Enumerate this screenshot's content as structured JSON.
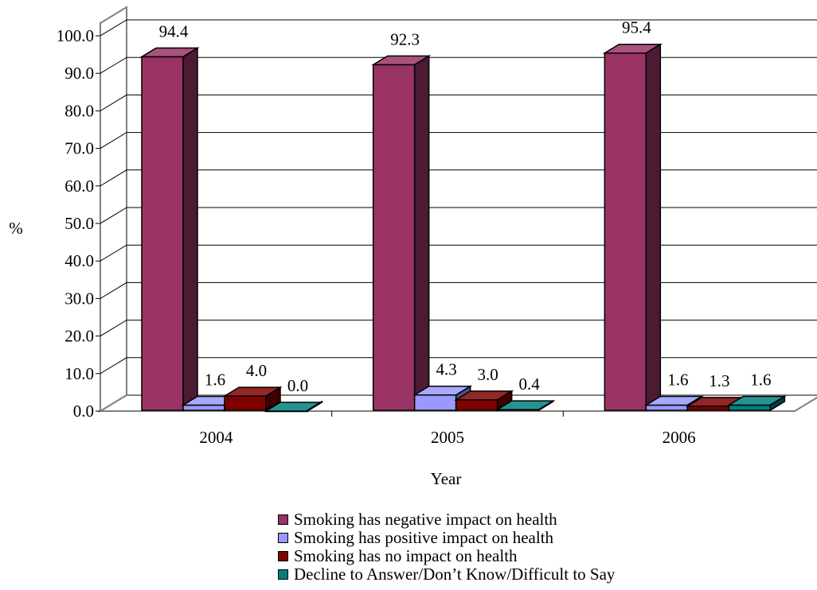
{
  "chart_data": {
    "type": "bar",
    "title": "",
    "xlabel": "Year",
    "ylabel": "%",
    "categories": [
      "2004",
      "2005",
      "2006"
    ],
    "ylim": [
      0,
      100
    ],
    "yticks": [
      "0.0",
      "10.0",
      "20.0",
      "30.0",
      "40.0",
      "50.0",
      "60.0",
      "70.0",
      "80.0",
      "90.0",
      "100.0"
    ],
    "grid": true,
    "three_d": true,
    "legend_position": "bottom",
    "series": [
      {
        "name": "Smoking has negative impact on health",
        "values": [
          94.4,
          92.3,
          95.4
        ],
        "labels": [
          "94.4",
          "92.3",
          "95.4"
        ],
        "color": "#993366"
      },
      {
        "name": "Smoking has positive impact on health",
        "values": [
          1.6,
          4.3,
          1.6
        ],
        "labels": [
          "1.6",
          "4.3",
          "1.6"
        ],
        "color": "#9999ff"
      },
      {
        "name": "Smoking has no impact on health",
        "values": [
          4.0,
          3.0,
          1.3
        ],
        "labels": [
          "4.0",
          "3.0",
          "1.3"
        ],
        "color": "#800000"
      },
      {
        "name": "Decline to Answer/Don’t Know/Difficult to Say",
        "values": [
          0.0,
          0.4,
          1.6
        ],
        "labels": [
          "0.0",
          "0.4",
          "1.6"
        ],
        "color": "#008080"
      }
    ]
  }
}
